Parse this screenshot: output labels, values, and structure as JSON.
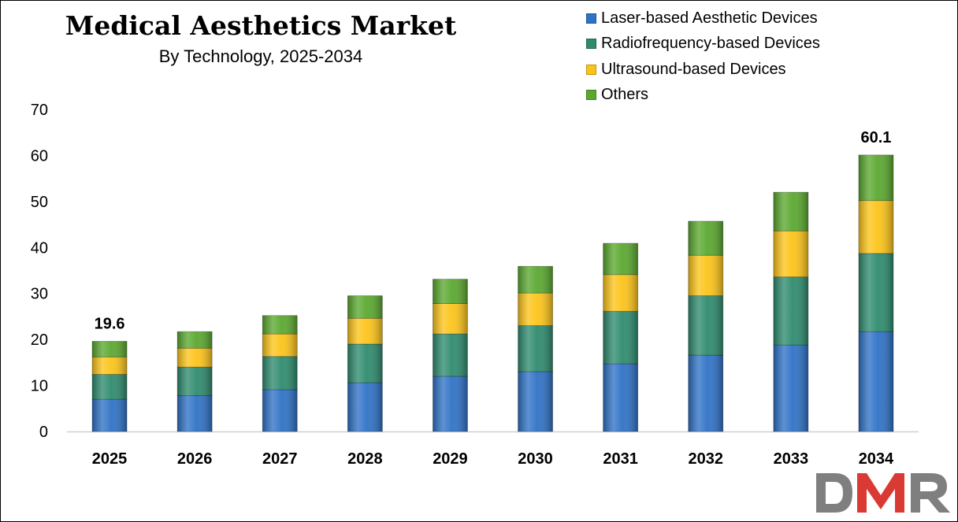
{
  "chart_data": {
    "type": "stacked-bar",
    "title": "Medical Aesthetics Market",
    "subtitle": "By Technology,  2025-2034",
    "categories": [
      "2025",
      "2026",
      "2027",
      "2028",
      "2029",
      "2030",
      "2031",
      "2032",
      "2033",
      "2034"
    ],
    "series": [
      {
        "name": "Laser-based Aesthetic Devices",
        "color": "#2f72c6",
        "values": [
          7.0,
          7.8,
          9.1,
          10.6,
          12.0,
          13.0,
          14.7,
          16.6,
          18.8,
          21.7
        ]
      },
      {
        "name": "Radiofrequency-based Devices",
        "color": "#2e8b6e",
        "values": [
          5.4,
          6.2,
          7.2,
          8.4,
          9.2,
          10.0,
          11.4,
          12.9,
          14.8,
          17.0
        ]
      },
      {
        "name": "Ultrasound-based Devices",
        "color": "#fcc419",
        "values": [
          3.8,
          4.1,
          4.9,
          5.6,
          6.6,
          7.1,
          8.0,
          8.8,
          10.0,
          11.5
        ]
      },
      {
        "name": "Others",
        "color": "#5aa82f",
        "values": [
          3.4,
          3.6,
          4.0,
          4.9,
          5.3,
          5.8,
          6.8,
          7.4,
          8.4,
          9.9
        ]
      }
    ],
    "data_labels": [
      {
        "category": "2025",
        "text": "19.6"
      },
      {
        "category": "2034",
        "text": "60.1"
      }
    ],
    "yticks": [
      "0",
      "10",
      "20",
      "30",
      "40",
      "50",
      "60",
      "70"
    ],
    "ylim": [
      0,
      70
    ],
    "xlabel": "",
    "ylabel": "",
    "grid": false,
    "legend_position": "top-right"
  },
  "logo": {
    "text": "DMR"
  }
}
